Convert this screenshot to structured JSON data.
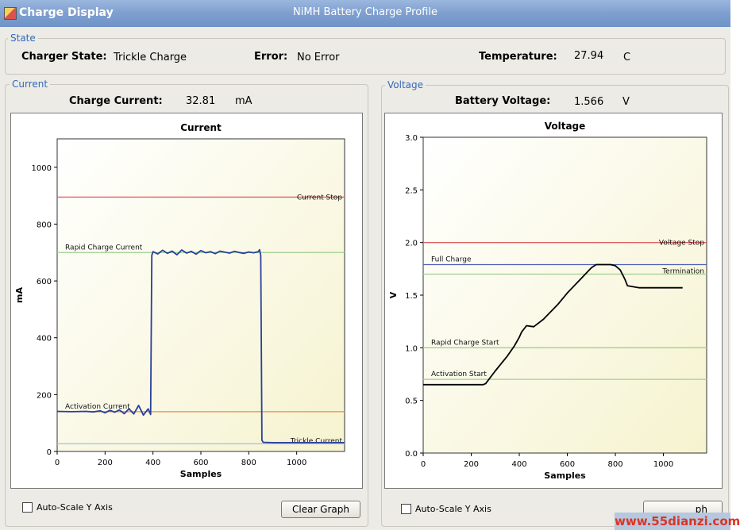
{
  "window": {
    "app_title": "Charge Display",
    "title": "NiMH Battery Charge Profile"
  },
  "state": {
    "group_label": "State",
    "charger_state_label": "Charger State:",
    "charger_state_value": "Trickle Charge",
    "error_label": "Error:",
    "error_value": "No Error",
    "temperature_label": "Temperature:",
    "temperature_value": "27.94",
    "temperature_unit": "C"
  },
  "current_panel": {
    "group_label": "Current",
    "readout_label": "Charge Current:",
    "readout_value": "32.81",
    "readout_unit": "mA",
    "autoscale_label": "Auto-Scale Y Axis",
    "clear_button_label": "Clear Graph"
  },
  "voltage_panel": {
    "group_label": "Voltage",
    "readout_label": "Battery Voltage:",
    "readout_value": "1.566",
    "readout_unit": "V",
    "autoscale_label": "Auto-Scale Y Axis",
    "clear_button_label": "ph"
  },
  "watermark": "www.55dianzi.com",
  "chart_data": [
    {
      "type": "line",
      "title": "Current",
      "xlabel": "Samples",
      "ylabel": "mA",
      "xlim": [
        0,
        1200
      ],
      "ylim": [
        0,
        1100
      ],
      "xticks": [
        0,
        200,
        400,
        600,
        800,
        1000
      ],
      "yticks": [
        0,
        200,
        400,
        600,
        800,
        1000
      ],
      "grid": false,
      "reference_lines": [
        {
          "name": "Current Stop",
          "value": 895,
          "color": "#e06060"
        },
        {
          "name": "Rapid Charge Current",
          "value": 700,
          "color": "#9fd08f"
        },
        {
          "name": "Activation Current",
          "value": 140,
          "color": "#f08a3c"
        },
        {
          "name": "Trickle Current",
          "value": 27,
          "color": "#a9c3e6"
        }
      ],
      "series": [
        {
          "color": "#2a3f9a",
          "x": [
            0,
            60,
            120,
            150,
            180,
            200,
            220,
            240,
            260,
            280,
            300,
            320,
            340,
            360,
            380,
            390,
            395,
            400,
            420,
            440,
            460,
            480,
            500,
            520,
            540,
            560,
            580,
            600,
            620,
            640,
            660,
            680,
            700,
            720,
            740,
            760,
            780,
            800,
            820,
            840,
            845,
            850,
            855,
            860,
            900,
            1000,
            1100,
            1200
          ],
          "y": [
            141,
            140,
            141,
            139,
            143,
            136,
            145,
            138,
            146,
            133,
            150,
            132,
            162,
            128,
            150,
            130,
            690,
            703,
            695,
            708,
            697,
            705,
            692,
            709,
            698,
            704,
            694,
            707,
            699,
            703,
            696,
            705,
            701,
            698,
            704,
            700,
            697,
            702,
            699,
            703,
            710,
            690,
            40,
            32,
            31,
            31,
            31,
            31
          ]
        }
      ]
    },
    {
      "type": "line",
      "title": "Voltage",
      "xlabel": "Samples",
      "ylabel": "V",
      "xlim": [
        0,
        1180
      ],
      "ylim": [
        0,
        3.0
      ],
      "xticks": [
        0,
        200,
        400,
        600,
        800,
        1000
      ],
      "yticks": [
        0.0,
        0.5,
        1.0,
        1.5,
        2.0,
        2.5,
        3.0
      ],
      "grid": false,
      "reference_lines": [
        {
          "name": "Voltage Stop",
          "value": 2.0,
          "color": "#e06060"
        },
        {
          "name": "Full Charge",
          "value": 1.79,
          "color": "#5060b8"
        },
        {
          "name": "Termination",
          "value": 1.7,
          "color": "#9fd08f"
        },
        {
          "name": "Rapid Charge Start",
          "value": 1.0,
          "color": "#9fd08f"
        },
        {
          "name": "Activation Start",
          "value": 0.7,
          "color": "#9fd08f"
        }
      ],
      "series": [
        {
          "color": "#000000",
          "x": [
            0,
            100,
            200,
            250,
            260,
            300,
            350,
            380,
            400,
            410,
            430,
            460,
            500,
            560,
            600,
            650,
            700,
            720,
            780,
            800,
            820,
            840,
            850,
            900,
            1000,
            1080
          ],
          "y": [
            0.65,
            0.65,
            0.65,
            0.65,
            0.66,
            0.78,
            0.92,
            1.02,
            1.1,
            1.15,
            1.21,
            1.2,
            1.27,
            1.41,
            1.52,
            1.64,
            1.76,
            1.79,
            1.79,
            1.78,
            1.74,
            1.65,
            1.59,
            1.57,
            1.57,
            1.57
          ]
        }
      ]
    }
  ]
}
